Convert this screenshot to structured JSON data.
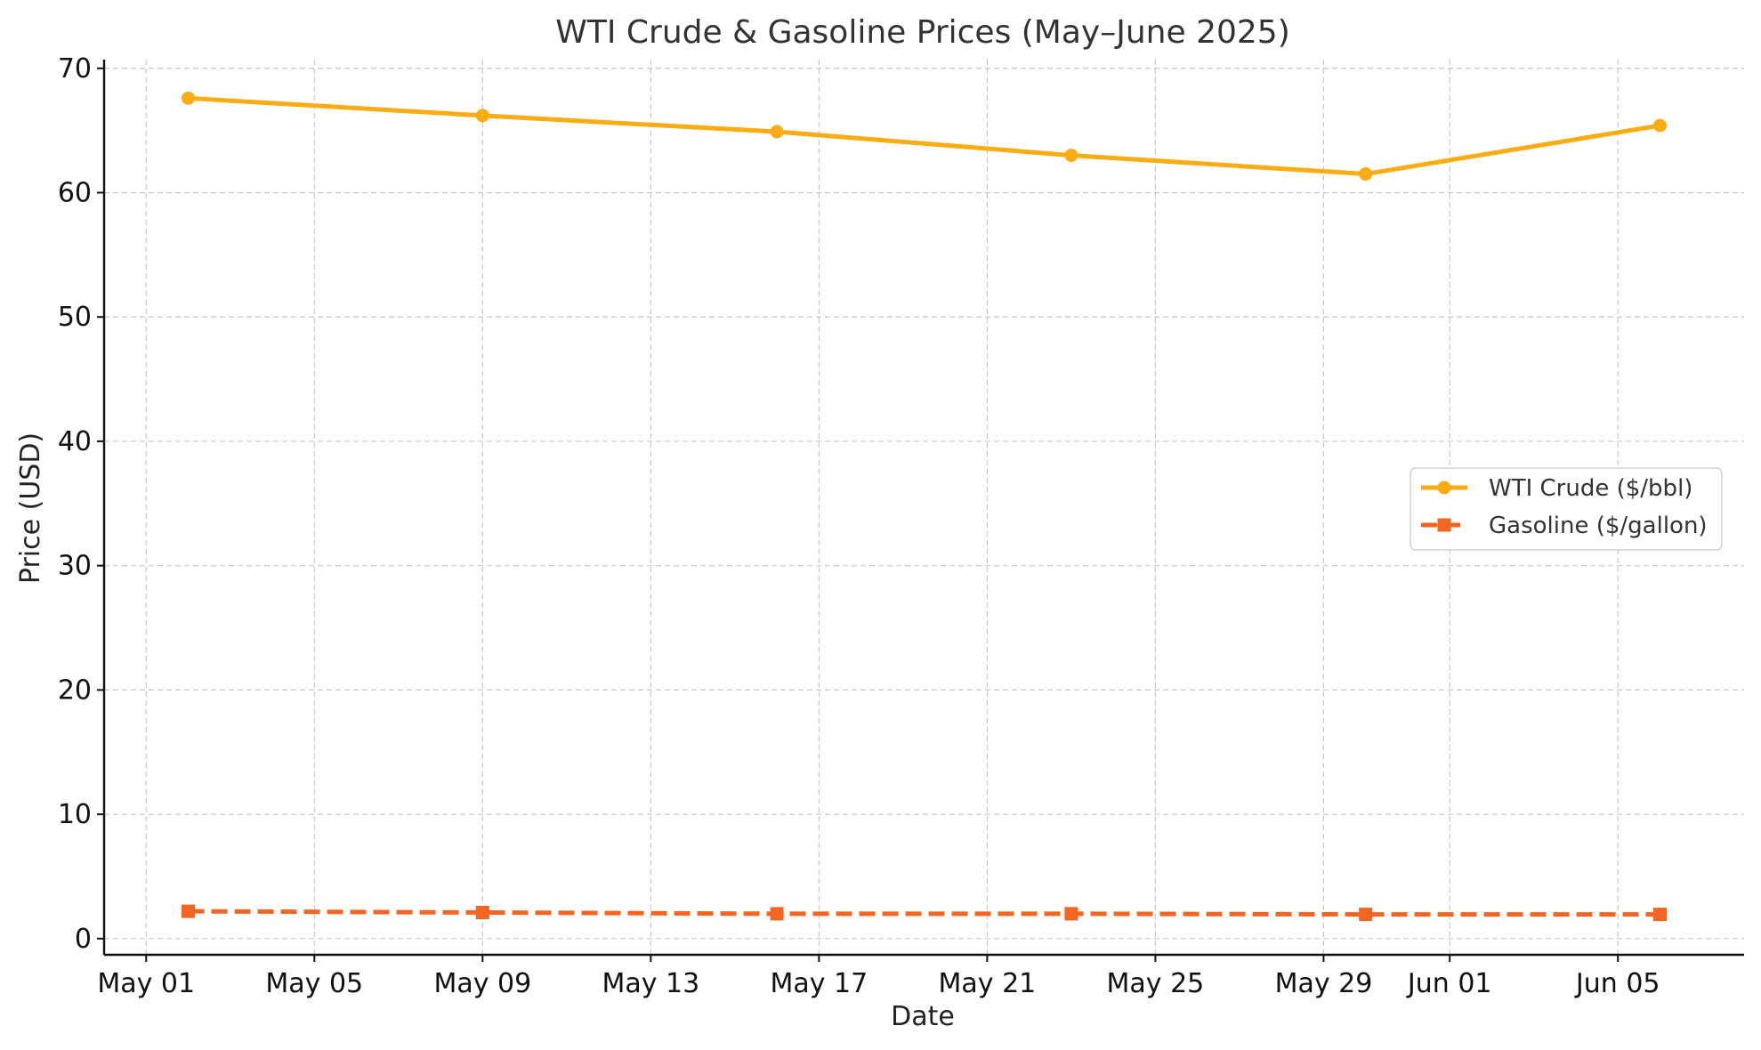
{
  "chart_data": {
    "type": "line",
    "title": "WTI Crude & Gasoline Prices (May–June 2025)",
    "xlabel": "Date",
    "ylabel": "Price (USD)",
    "x_type": "date",
    "x": [
      "2025-05-02",
      "2025-05-09",
      "2025-05-16",
      "2025-05-23",
      "2025-05-30",
      "2025-06-06"
    ],
    "xlim": [
      "2025-04-30",
      "2025-06-08"
    ],
    "x_ticks": [
      {
        "date": "2025-05-01",
        "label": "May 01"
      },
      {
        "date": "2025-05-05",
        "label": "May 05"
      },
      {
        "date": "2025-05-09",
        "label": "May 09"
      },
      {
        "date": "2025-05-13",
        "label": "May 13"
      },
      {
        "date": "2025-05-17",
        "label": "May 17"
      },
      {
        "date": "2025-05-21",
        "label": "May 21"
      },
      {
        "date": "2025-05-25",
        "label": "May 25"
      },
      {
        "date": "2025-05-29",
        "label": "May 29"
      },
      {
        "date": "2025-06-01",
        "label": "Jun 01"
      },
      {
        "date": "2025-06-05",
        "label": "Jun 05"
      }
    ],
    "ylim": [
      -1.3,
      70.7
    ],
    "y_ticks": [
      0,
      10,
      20,
      30,
      40,
      50,
      60,
      70
    ],
    "grid": true,
    "legend_position": "center-right",
    "series": [
      {
        "name": "WTI Crude ($/bbl)",
        "color": "#FAAC14",
        "marker": "circle",
        "line_style": "solid",
        "values": [
          67.6,
          66.2,
          64.9,
          63.0,
          61.5,
          65.4
        ]
      },
      {
        "name": "Gasoline ($/gallon)",
        "color": "#F26522",
        "marker": "square",
        "line_style": "dashed",
        "values": [
          2.2,
          2.1,
          2.0,
          2.0,
          1.95,
          1.95
        ]
      }
    ]
  }
}
